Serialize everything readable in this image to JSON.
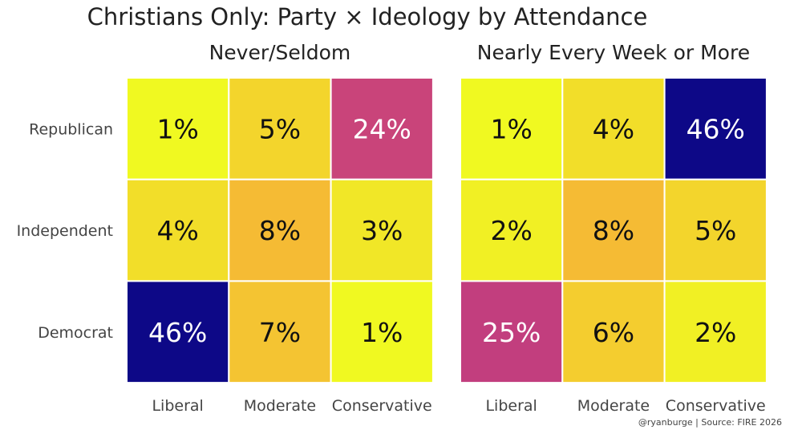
{
  "chart_data": {
    "type": "heatmap",
    "title": "Christians Only: Party × Ideology by Attendance",
    "caption": "@ryanburge | Source: FIRE 2026",
    "rows": [
      "Republican",
      "Independent",
      "Democrat"
    ],
    "columns": [
      "Liberal",
      "Moderate",
      "Conservative"
    ],
    "unit": "%",
    "color_scale": "plasma (reversed: high = dark blue, low = yellow)",
    "color_range": [
      1,
      46
    ],
    "panels": [
      {
        "title": "Never/Seldom",
        "values": [
          [
            1,
            5,
            24
          ],
          [
            4,
            8,
            3
          ],
          [
            46,
            7,
            1
          ]
        ]
      },
      {
        "title": "Nearly Every Week or More",
        "values": [
          [
            1,
            4,
            46
          ],
          [
            2,
            8,
            5
          ],
          [
            25,
            6,
            2
          ]
        ]
      }
    ]
  }
}
